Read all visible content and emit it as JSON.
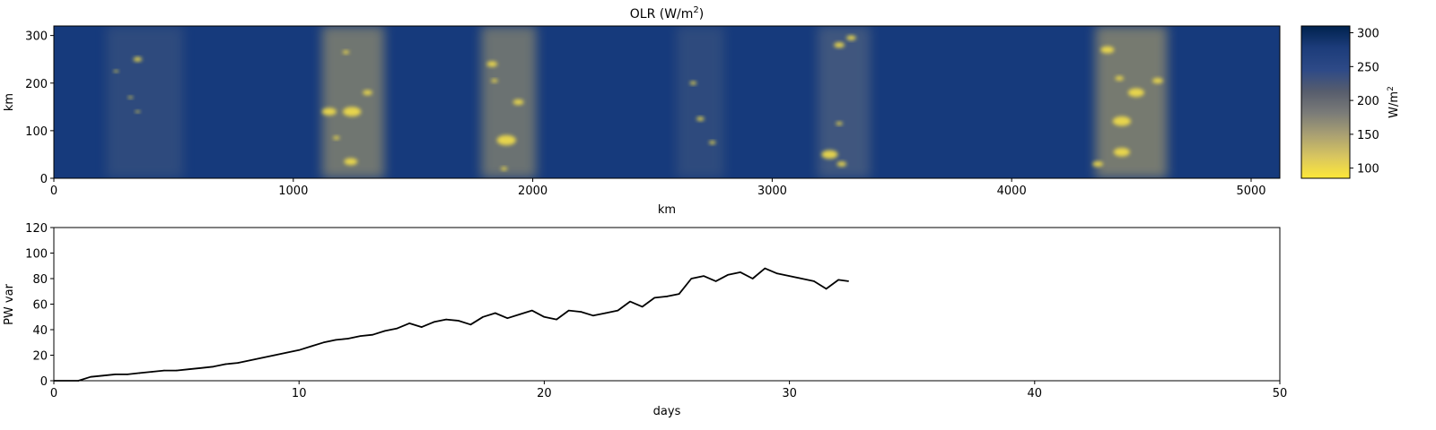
{
  "chart_data": [
    {
      "type": "heatmap",
      "title": "OLR (W/m",
      "title_superscript": "2",
      "title_suffix": ")",
      "xlabel": "km",
      "ylabel": "km",
      "xlim": [
        0,
        5120
      ],
      "ylim": [
        0,
        320
      ],
      "xticks": [
        "0",
        "1000",
        "2000",
        "3000",
        "4000",
        "5000"
      ],
      "yticks": [
        "0",
        "100",
        "200",
        "300"
      ],
      "colormap": "cividis_r",
      "colormap_colors": [
        "#fee838",
        "#d9c65f",
        "#a89f73",
        "#7a7b78",
        "#575d6d",
        "#2e4a87",
        "#1c3c7a",
        "#00224e"
      ],
      "colorbar": {
        "label": "W/m",
        "label_superscript": "2",
        "range": [
          85,
          310
        ],
        "ticks": [
          "100",
          "150",
          "200",
          "250",
          "300"
        ]
      },
      "convective_bands_km": [
        {
          "center": 380,
          "width": 320,
          "strength": 0.35
        },
        {
          "center": 1250,
          "width": 260,
          "strength": 0.75
        },
        {
          "center": 1900,
          "width": 230,
          "strength": 0.7
        },
        {
          "center": 2700,
          "width": 200,
          "strength": 0.35
        },
        {
          "center": 3300,
          "width": 220,
          "strength": 0.6
        },
        {
          "center": 4500,
          "width": 300,
          "strength": 0.8
        }
      ],
      "cells": [
        {
          "x": 350,
          "y": 250,
          "r": 18
        },
        {
          "x": 260,
          "y": 225,
          "r": 10
        },
        {
          "x": 320,
          "y": 170,
          "r": 10
        },
        {
          "x": 350,
          "y": 140,
          "r": 10
        },
        {
          "x": 1150,
          "y": 140,
          "r": 30
        },
        {
          "x": 1220,
          "y": 265,
          "r": 14
        },
        {
          "x": 1245,
          "y": 140,
          "r": 38
        },
        {
          "x": 1310,
          "y": 180,
          "r": 20
        },
        {
          "x": 1180,
          "y": 85,
          "r": 14
        },
        {
          "x": 1240,
          "y": 35,
          "r": 28
        },
        {
          "x": 1830,
          "y": 240,
          "r": 22
        },
        {
          "x": 1840,
          "y": 205,
          "r": 14
        },
        {
          "x": 1890,
          "y": 80,
          "r": 40
        },
        {
          "x": 1940,
          "y": 160,
          "r": 22
        },
        {
          "x": 1880,
          "y": 20,
          "r": 14
        },
        {
          "x": 2670,
          "y": 200,
          "r": 14
        },
        {
          "x": 2700,
          "y": 125,
          "r": 16
        },
        {
          "x": 2750,
          "y": 75,
          "r": 14
        },
        {
          "x": 3280,
          "y": 280,
          "r": 22
        },
        {
          "x": 3330,
          "y": 295,
          "r": 20
        },
        {
          "x": 3280,
          "y": 115,
          "r": 14
        },
        {
          "x": 3240,
          "y": 50,
          "r": 34
        },
        {
          "x": 3290,
          "y": 30,
          "r": 20
        },
        {
          "x": 4400,
          "y": 270,
          "r": 28
        },
        {
          "x": 4450,
          "y": 210,
          "r": 18
        },
        {
          "x": 4520,
          "y": 180,
          "r": 34
        },
        {
          "x": 4610,
          "y": 205,
          "r": 22
        },
        {
          "x": 4460,
          "y": 55,
          "r": 34
        },
        {
          "x": 4360,
          "y": 30,
          "r": 22
        },
        {
          "x": 4460,
          "y": 120,
          "r": 38
        }
      ]
    },
    {
      "type": "line",
      "xlabel": "days",
      "ylabel": "PW var",
      "xlim": [
        0,
        50
      ],
      "ylim": [
        0,
        120
      ],
      "xticks": [
        "0",
        "10",
        "20",
        "30",
        "40",
        "50"
      ],
      "yticks": [
        "0",
        "20",
        "40",
        "60",
        "80",
        "100",
        "120"
      ],
      "line_color": "#000000",
      "x": [
        0,
        1,
        1.5,
        2,
        2.5,
        3,
        3.5,
        4,
        4.5,
        5,
        5.5,
        6,
        6.5,
        7,
        7.5,
        8,
        8.5,
        9,
        9.5,
        10,
        10.5,
        11,
        11.5,
        12,
        12.5,
        13,
        13.5,
        14,
        14.5,
        15,
        15.5,
        16,
        16.5,
        17,
        17.5,
        18,
        18.5,
        19,
        19.5,
        20,
        20.5,
        21,
        21.5,
        22,
        22.5,
        23,
        23.5,
        24,
        24.5,
        25,
        25.5,
        26,
        26.5,
        27,
        27.5,
        28,
        28.5,
        29,
        29.5,
        30,
        30.5,
        31,
        31.5,
        32,
        32.4
      ],
      "y": [
        0,
        0,
        3,
        4,
        5,
        5,
        6,
        7,
        8,
        8,
        9,
        10,
        11,
        13,
        14,
        16,
        18,
        20,
        22,
        24,
        27,
        30,
        32,
        33,
        35,
        36,
        39,
        41,
        45,
        42,
        46,
        48,
        47,
        44,
        50,
        53,
        49,
        52,
        55,
        50,
        48,
        55,
        54,
        51,
        53,
        55,
        62,
        58,
        65,
        66,
        68,
        80,
        82,
        78,
        83,
        85,
        80,
        88,
        84,
        82,
        80,
        78,
        72,
        79,
        78
      ]
    }
  ]
}
